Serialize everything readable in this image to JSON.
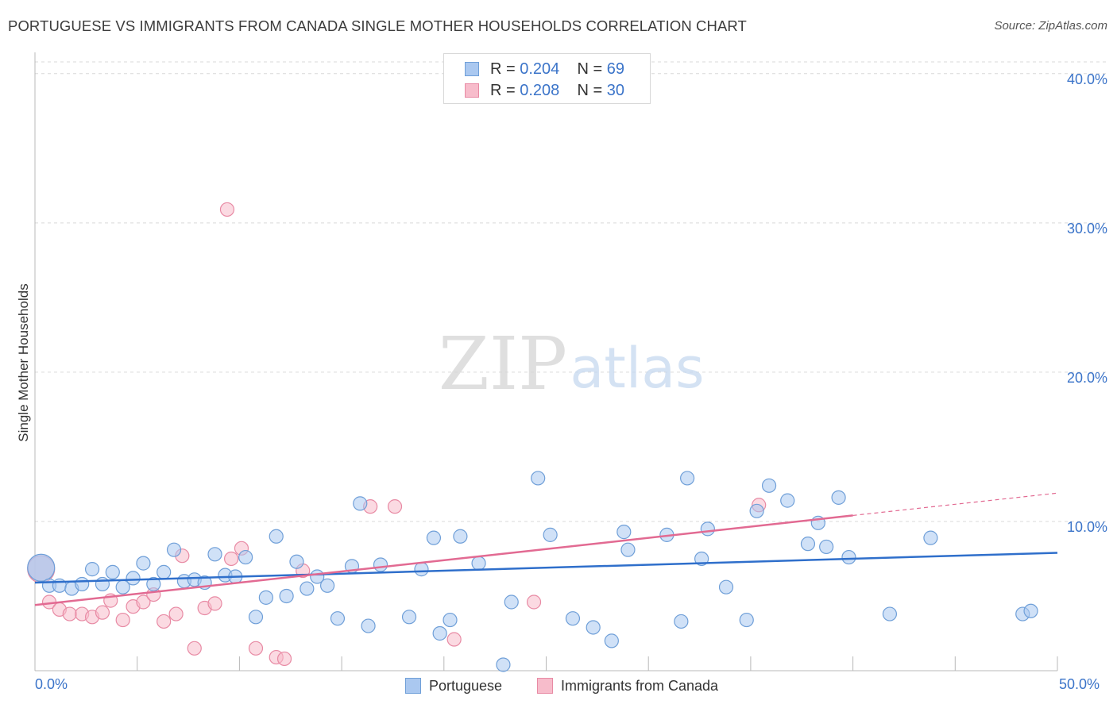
{
  "title": "PORTUGUESE VS IMMIGRANTS FROM CANADA SINGLE MOTHER HOUSEHOLDS CORRELATION CHART",
  "source": "Source: ZipAtlas.com",
  "watermark": {
    "zip": "ZIP",
    "atlas": "atlas"
  },
  "legend_top": {
    "rows": [
      {
        "r_label": "R = ",
        "r_value": "0.204",
        "n_label": "N = ",
        "n_value": "69",
        "color": "#aac8f0"
      },
      {
        "r_label": "R = ",
        "r_value": "0.208",
        "n_label": "N = ",
        "n_value": "30",
        "color": "#f7bccb"
      }
    ]
  },
  "legend_bottom": {
    "items": [
      "Portuguese",
      "Immigrants from Canada"
    ]
  },
  "colors": {
    "blue_fill": "#aac8f0",
    "blue_stroke": "#6f9fd8",
    "blue_line": "#2f6fcb",
    "pink_fill": "#f7bccb",
    "pink_stroke": "#e88aa4",
    "pink_line": "#e26a92",
    "tick_label": "#3b74c9",
    "grid": "#d9d9d9"
  },
  "chart_data": {
    "type": "scatter",
    "xlabel": "",
    "ylabel": "Single Mother Households",
    "xlim": [
      0,
      50
    ],
    "ylim": [
      0,
      41
    ],
    "x_tick_labels": [
      "0.0%",
      "50.0%"
    ],
    "y_ticks": [
      10,
      20,
      30,
      40
    ],
    "y_tick_labels": [
      "10.0%",
      "20.0%",
      "30.0%",
      "40.0%"
    ],
    "grid": true,
    "series": [
      {
        "name": "Portuguese",
        "color": "#aac8f0",
        "points": [
          [
            0.3,
            6.9
          ],
          [
            0.7,
            5.7
          ],
          [
            1.2,
            5.7
          ],
          [
            1.8,
            5.5
          ],
          [
            2.3,
            5.8
          ],
          [
            2.8,
            6.8
          ],
          [
            3.3,
            5.8
          ],
          [
            3.8,
            6.6
          ],
          [
            4.3,
            5.6
          ],
          [
            4.8,
            6.2
          ],
          [
            5.3,
            7.2
          ],
          [
            5.8,
            5.8
          ],
          [
            6.3,
            6.6
          ],
          [
            6.8,
            8.1
          ],
          [
            7.3,
            6.0
          ],
          [
            7.8,
            6.1
          ],
          [
            8.3,
            5.9
          ],
          [
            8.8,
            7.8
          ],
          [
            9.3,
            6.4
          ],
          [
            9.8,
            6.3
          ],
          [
            10.3,
            7.6
          ],
          [
            10.8,
            3.6
          ],
          [
            11.3,
            4.9
          ],
          [
            11.8,
            9.0
          ],
          [
            12.3,
            5.0
          ],
          [
            12.8,
            7.3
          ],
          [
            13.3,
            5.5
          ],
          [
            13.8,
            6.3
          ],
          [
            14.3,
            5.7
          ],
          [
            14.8,
            3.5
          ],
          [
            15.5,
            7.0
          ],
          [
            15.9,
            11.2
          ],
          [
            16.3,
            3.0
          ],
          [
            16.9,
            7.1
          ],
          [
            18.3,
            3.6
          ],
          [
            18.9,
            6.8
          ],
          [
            19.5,
            8.9
          ],
          [
            19.8,
            2.5
          ],
          [
            20.3,
            3.4
          ],
          [
            20.8,
            9.0
          ],
          [
            21.7,
            7.2
          ],
          [
            22.9,
            0.4
          ],
          [
            23.3,
            4.6
          ],
          [
            24.6,
            12.9
          ],
          [
            25.2,
            9.1
          ],
          [
            26.3,
            3.5
          ],
          [
            27.3,
            2.9
          ],
          [
            28.2,
            2.0
          ],
          [
            28.8,
            9.3
          ],
          [
            29.0,
            8.1
          ],
          [
            30.9,
            9.1
          ],
          [
            31.6,
            3.3
          ],
          [
            31.9,
            12.9
          ],
          [
            32.6,
            7.5
          ],
          [
            32.9,
            9.5
          ],
          [
            33.8,
            5.6
          ],
          [
            34.8,
            3.4
          ],
          [
            35.3,
            10.7
          ],
          [
            35.9,
            12.4
          ],
          [
            36.8,
            11.4
          ],
          [
            37.8,
            8.5
          ],
          [
            38.3,
            9.9
          ],
          [
            38.7,
            8.3
          ],
          [
            39.3,
            11.6
          ],
          [
            39.8,
            7.6
          ],
          [
            41.8,
            3.8
          ],
          [
            43.8,
            8.9
          ],
          [
            48.3,
            3.8
          ],
          [
            48.7,
            4.0
          ]
        ]
      },
      {
        "name": "Immigrants from Canada",
        "color": "#f7bccb",
        "points": [
          [
            0.3,
            6.8
          ],
          [
            0.7,
            4.6
          ],
          [
            1.2,
            4.1
          ],
          [
            1.7,
            3.8
          ],
          [
            2.3,
            3.8
          ],
          [
            2.8,
            3.6
          ],
          [
            3.3,
            3.9
          ],
          [
            3.7,
            4.7
          ],
          [
            4.3,
            3.4
          ],
          [
            4.8,
            4.3
          ],
          [
            5.3,
            4.6
          ],
          [
            5.8,
            5.1
          ],
          [
            6.3,
            3.3
          ],
          [
            6.9,
            3.8
          ],
          [
            7.2,
            7.7
          ],
          [
            7.8,
            1.5
          ],
          [
            8.3,
            4.2
          ],
          [
            8.8,
            4.5
          ],
          [
            9.4,
            30.9
          ],
          [
            9.6,
            7.5
          ],
          [
            10.1,
            8.2
          ],
          [
            10.8,
            1.5
          ],
          [
            11.8,
            0.9
          ],
          [
            12.2,
            0.8
          ],
          [
            13.1,
            6.7
          ],
          [
            16.4,
            11.0
          ],
          [
            17.6,
            11.0
          ],
          [
            20.5,
            2.1
          ],
          [
            24.4,
            4.6
          ],
          [
            35.4,
            11.1
          ]
        ]
      }
    ],
    "trend_lines": [
      {
        "series": "Portuguese",
        "x": [
          0,
          50
        ],
        "y": [
          5.9,
          7.9
        ]
      },
      {
        "series": "Immigrants from Canada",
        "x": [
          0,
          40
        ],
        "y": [
          4.4,
          10.4
        ],
        "dashed_extension": {
          "x": [
            40,
            50
          ],
          "y": [
            10.4,
            11.9
          ]
        }
      }
    ]
  }
}
